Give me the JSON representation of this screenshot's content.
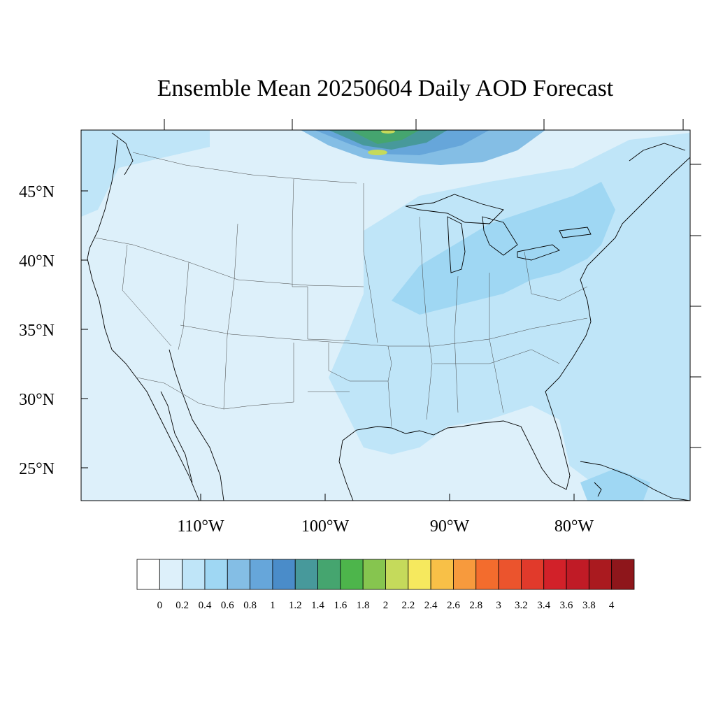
{
  "title": "Ensemble Mean 20250604 Daily AOD Forecast",
  "lat_labels": [
    "45°N",
    "40°N",
    "35°N",
    "30°N",
    "25°N"
  ],
  "lon_labels": [
    "110°W",
    "100°W",
    "90°W",
    "80°W"
  ],
  "colorbar": {
    "colors": [
      "#ffffff",
      "#ddf0fa",
      "#bfe5f8",
      "#9fd7f3",
      "#84bee5",
      "#66a6da",
      "#4a8cc9",
      "#47999b",
      "#45a56f",
      "#4db54b",
      "#86c54f",
      "#c5da5b",
      "#f6e95e",
      "#f8c047",
      "#f79a3d",
      "#f36c2d",
      "#eb542d",
      "#e13a2b",
      "#d22129",
      "#c01b26",
      "#aa1a1f",
      "#8e161b"
    ],
    "labels": [
      "0",
      "0.2",
      "0.4",
      "0.6",
      "0.8",
      "1",
      "1.2",
      "1.4",
      "1.6",
      "1.8",
      "2",
      "2.2",
      "2.4",
      "2.6",
      "2.8",
      "3",
      "3.2",
      "3.4",
      "3.6",
      "3.8",
      "4"
    ]
  }
}
